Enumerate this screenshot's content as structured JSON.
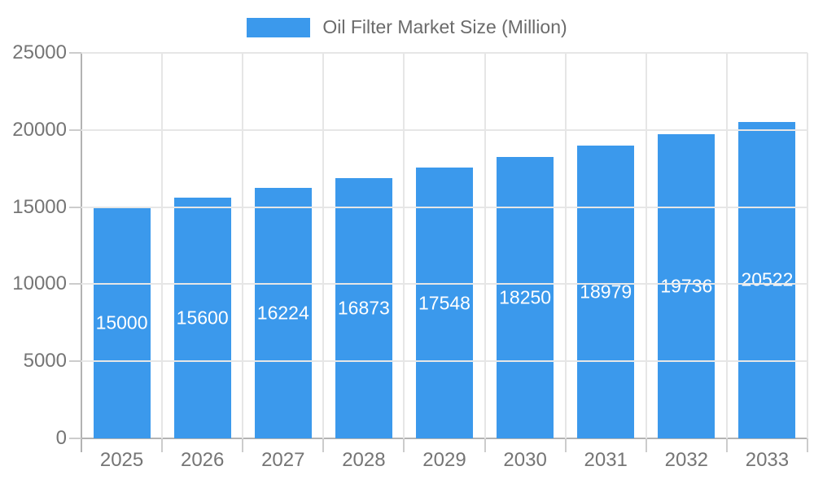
{
  "page": {
    "background_color": "#ffffff"
  },
  "legend": {
    "label": "Oil Filter Market Size (Million)",
    "swatch_color": "#3b99ec",
    "position": "top-center"
  },
  "chart_data": {
    "type": "bar",
    "title": "Oil Filter Market Size (Million)",
    "categories": [
      "2025",
      "2026",
      "2027",
      "2028",
      "2029",
      "2030",
      "2031",
      "2032",
      "2033"
    ],
    "values": [
      15000,
      15600,
      16224,
      16873,
      17548,
      18250,
      18979,
      19736,
      20522
    ],
    "value_labels": [
      "15000",
      "15600",
      "16224",
      "16873",
      "17548",
      "18250",
      "18979",
      "19736",
      "20522"
    ],
    "xlabel": "",
    "ylabel": "",
    "ylim": [
      0,
      25000
    ],
    "yticks": [
      0,
      5000,
      10000,
      15000,
      20000,
      25000
    ],
    "ytick_labels": [
      "0",
      "5000",
      "10000",
      "15000",
      "20000",
      "25000"
    ],
    "grid": true,
    "legend_position": "top",
    "colors": {
      "bar": "#3b99ec",
      "value_label": "#ffffff",
      "axis_label": "#757575",
      "legend_label": "#6b6b6b",
      "grid_line": "#e6e6e6",
      "axis_line": "#b3b3b3",
      "tick": "#cccccc",
      "background": "#ffffff"
    }
  }
}
